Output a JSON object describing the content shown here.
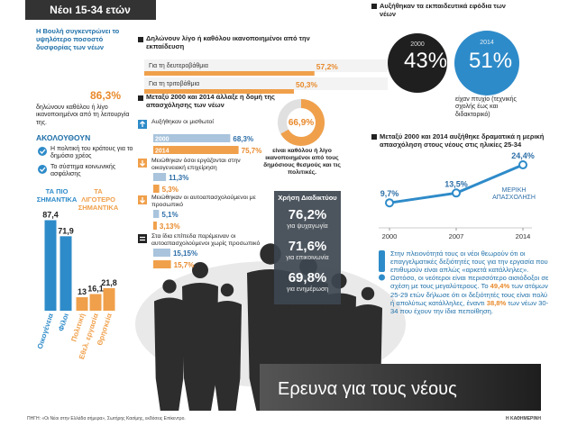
{
  "header": {
    "title": "Νέοι 15-34 ετών"
  },
  "parliament": {
    "text": "Η Βουλή συγκεντρώνει το υψηλότερο ποσοστό δυσφορίας των νέων",
    "value": "86,3%",
    "caption": "δηλώνουν καθόλου ή λίγο ικανοποιημένοι από τη λειτουργία της.",
    "follow_title": "ΑΚΟΛΟΥΘΟΥΝ",
    "follow_items": [
      "Η πολιτική του κράτους για το δημόσιο χρέος",
      "Το σύστημα κοινωνικής ασφάλισης"
    ]
  },
  "internet": {
    "title": "Χρήση Διαδικτύου",
    "items": [
      {
        "value": "76,2%",
        "label": "για ψυχαγωγία"
      },
      {
        "value": "71,6%",
        "label": "για επικοινωνία"
      },
      {
        "value": "69,8%",
        "label": "για ενημέρωση"
      }
    ]
  },
  "education": {
    "title": "Αυξήθηκαν τα εκπαιδευτικά εφόδια των νέων",
    "items": [
      {
        "year": "2000",
        "value": "43%"
      },
      {
        "year": "2014",
        "value": "51%"
      }
    ],
    "caption": "είχαν πτυχίο (τεχνικής σχολής έως και διδακτορικό)"
  },
  "paragraph": {
    "parts": [
      "Στην πλειονότητά τους οι νέοι θεωρούν ότι οι επαγγελματικές δεξιότητές τους για την εργασία που επιθυμούν είναι απλώς «αρκετά κατάλληλες». Ωστόσο, οι νεότεροι είναι περισσότερο αισιόδοξοι σε σχέση με τους μεγαλύτερους. Το ",
      "49,4%",
      " των ατόμων 25-29 ετών δήλωσε ότι οι δεξιότητές τους είναι πολύ ή απολύτως κατάλληλες, έναντι ",
      "38,8%",
      " των νέων 30-34 που έχουν την ίδια πεποίθηση."
    ]
  },
  "banner": {
    "title": "Ερευνα για τους νέους"
  },
  "source": "ΠΗΓΗ: «Οι Νέοι στην Ελλάδα σήμερα», Σωτήρης Κασίμης, εκδόσεις Επίκεντρο.",
  "publisher": "Η ΚΑΘΗΜΕΡΙΝΗ",
  "chart_data": [
    {
      "type": "bar",
      "groups": [
        {
          "name": "ΤΑ ΠΙΟ ΣΗΜΑΝΤΙΚΑ",
          "color": "#2e8bc9",
          "categories": [
            "Οικογένεια",
            "Φίλοι"
          ],
          "values": [
            87.4,
            71.9
          ],
          "value_labels": [
            "87,4",
            "71,9"
          ]
        },
        {
          "name": "ΤΑ ΛΙΓΟΤΕΡΟ ΣΗΜΑΝΤΙΚΑ",
          "color": "#f0a04b",
          "categories": [
            "Πολιτική",
            "Εθελ. εργασία",
            "Θρησκεία"
          ],
          "values": [
            13,
            16.1,
            21.8
          ],
          "value_labels": [
            "13",
            "16,1",
            "21,8"
          ]
        }
      ],
      "ylim": [
        0,
        100
      ]
    },
    {
      "type": "barh",
      "title": "Δηλώνουν λίγο ή καθόλου ικανοποιημένοι από την εκπαίδευση",
      "categories": [
        "Για τη δευτεροβάθμια",
        "Για τη τριτοβάθμια"
      ],
      "values": [
        57.2,
        50.3
      ],
      "value_labels": [
        "57,2%",
        "50,3%"
      ],
      "color": "#f0a04b",
      "xlim": [
        0,
        100
      ]
    },
    {
      "type": "barh",
      "title": "Μεταξύ 2000 και 2014 άλλαξε η δομή της απασχόλησης των νέων",
      "categories": [
        "Αυξήθηκαν οι μισθωτοί",
        "Μειώθηκαν όσοι εργάζονται στην οικογενειακή επιχείρηση",
        "Μειώθηκαν οι αυτοαπασχολούμενοι με προσωπικό",
        "Στα ίδια επίπεδα παρέμειναν οι αυτοαπασχολούμενοι χωρίς προσωπικό"
      ],
      "series": [
        {
          "name": "2000",
          "color": "#a9c4dc",
          "values": [
            68.3,
            11.3,
            5.1,
            15.15
          ],
          "value_labels": [
            "68,3%",
            "11,3%",
            "5,1%",
            "15,15%"
          ]
        },
        {
          "name": "2014",
          "color": "#f0a04b",
          "values": [
            75.7,
            5.3,
            3.13,
            15.7
          ],
          "value_labels": [
            "75,7%",
            "5,3%",
            "3,13%",
            "15,7%"
          ]
        }
      ],
      "xlim": [
        0,
        100
      ]
    },
    {
      "type": "pie",
      "values": [
        66.9
      ],
      "value_labels": [
        "66,9%"
      ],
      "color": "#f0a04b",
      "caption": "είναι καθόλου ή λίγο ικανοποιημένοι από τους δημόσιους θεσμούς και τις πολιτικές."
    },
    {
      "type": "line",
      "title": "Μεταξύ 2000 και 2014 αυξήθηκε δραματικά η μερική απασχόληση στους νέους στις ηλικίες 25-34",
      "x": [
        2000,
        2007,
        2014
      ],
      "values": [
        9.7,
        13.5,
        24.4
      ],
      "value_labels": [
        "9,7%",
        "13,5%",
        "24,4%"
      ],
      "xlim": [
        2000,
        2014
      ],
      "xticks": [
        2000,
        2007,
        2014
      ],
      "ylim": [
        0,
        30
      ],
      "color": "#2e8bc9",
      "annotation": "ΜΕΡΙΚΗ ΑΠΑΣΧΟΛΗΣΗ"
    }
  ]
}
